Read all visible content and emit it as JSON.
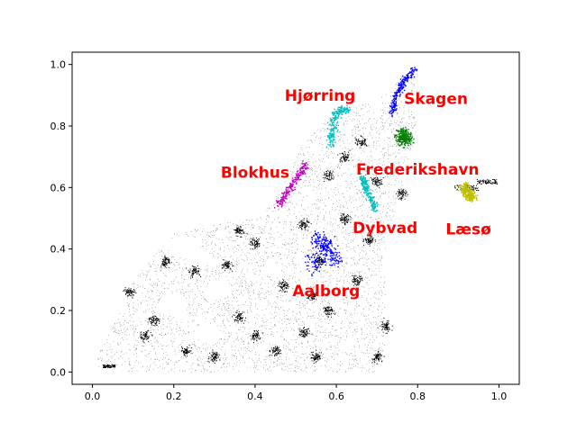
{
  "chart_data": {
    "type": "scatter",
    "title": "",
    "xlabel": "",
    "ylabel": "",
    "xlim": [
      -0.05,
      1.05
    ],
    "ylim": [
      -0.04,
      1.04
    ],
    "xticks": [
      0.0,
      0.2,
      0.4,
      0.6,
      0.8,
      1.0
    ],
    "yticks": [
      0.0,
      0.2,
      0.4,
      0.6,
      0.8,
      1.0
    ],
    "xtick_labels": [
      "0.0",
      "0.2",
      "0.4",
      "0.6",
      "0.8",
      "1.0"
    ],
    "ytick_labels": [
      "0.0",
      "0.2",
      "0.4",
      "0.6",
      "0.8",
      "1.0"
    ],
    "grid": false,
    "background_points": {
      "color": "#000000",
      "outline": [
        [
          0.0,
          0.02
        ],
        [
          0.03,
          0.1
        ],
        [
          0.07,
          0.2
        ],
        [
          0.1,
          0.3
        ],
        [
          0.15,
          0.38
        ],
        [
          0.2,
          0.45
        ],
        [
          0.3,
          0.48
        ],
        [
          0.4,
          0.5
        ],
        [
          0.44,
          0.55
        ],
        [
          0.48,
          0.65
        ],
        [
          0.52,
          0.75
        ],
        [
          0.56,
          0.8
        ],
        [
          0.6,
          0.84
        ],
        [
          0.66,
          0.87
        ],
        [
          0.72,
          0.9
        ],
        [
          0.76,
          0.96
        ],
        [
          0.8,
          0.98
        ],
        [
          0.78,
          0.88
        ],
        [
          0.8,
          0.8
        ],
        [
          0.78,
          0.7
        ],
        [
          0.76,
          0.6
        ],
        [
          0.74,
          0.5
        ],
        [
          0.72,
          0.4
        ],
        [
          0.72,
          0.3
        ],
        [
          0.72,
          0.2
        ],
        [
          0.72,
          0.1
        ],
        [
          0.7,
          0.0
        ],
        [
          0.5,
          0.0
        ],
        [
          0.3,
          0.0
        ],
        [
          0.1,
          0.0
        ]
      ],
      "gaps": [
        [
          0.22,
          0.41,
          0.035
        ],
        [
          0.27,
          0.37,
          0.025
        ],
        [
          0.2,
          0.22,
          0.035
        ],
        [
          0.31,
          0.27,
          0.03
        ],
        [
          0.28,
          0.13,
          0.03
        ],
        [
          0.44,
          0.33,
          0.02
        ],
        [
          0.6,
          0.22,
          0.015
        ],
        [
          0.62,
          0.09,
          0.01
        ]
      ],
      "dense_clusters": [
        [
          0.56,
          0.36
        ],
        [
          0.62,
          0.5
        ],
        [
          0.58,
          0.64
        ],
        [
          0.66,
          0.75
        ],
        [
          0.7,
          0.62
        ],
        [
          0.52,
          0.48
        ],
        [
          0.47,
          0.28
        ],
        [
          0.36,
          0.18
        ],
        [
          0.52,
          0.13
        ],
        [
          0.65,
          0.3
        ],
        [
          0.23,
          0.07
        ],
        [
          0.13,
          0.12
        ],
        [
          0.09,
          0.26
        ],
        [
          0.4,
          0.42
        ],
        [
          0.58,
          0.2
        ],
        [
          0.45,
          0.07
        ],
        [
          0.33,
          0.35
        ],
        [
          0.68,
          0.43
        ],
        [
          0.76,
          0.58
        ],
        [
          0.3,
          0.05
        ],
        [
          0.62,
          0.7
        ],
        [
          0.15,
          0.17
        ],
        [
          0.55,
          0.05
        ],
        [
          0.25,
          0.33
        ],
        [
          0.4,
          0.12
        ],
        [
          0.72,
          0.15
        ],
        [
          0.18,
          0.36
        ],
        [
          0.36,
          0.46
        ],
        [
          0.7,
          0.05
        ],
        [
          0.54,
          0.25
        ]
      ],
      "islands": [
        [
          0.92,
          0.6,
          0.03
        ],
        [
          0.97,
          0.62,
          0.025
        ],
        [
          0.04,
          0.02,
          0.015
        ]
      ]
    },
    "series": [
      {
        "name": "Skagen",
        "color": "#0000ff",
        "shape": "curve",
        "points": [
          [
            0.735,
            0.84
          ],
          [
            0.745,
            0.9
          ],
          [
            0.765,
            0.95
          ],
          [
            0.79,
            0.985
          ]
        ],
        "spread": 0.006
      },
      {
        "name": "Hjørring",
        "color": "#00bfbf",
        "shape": "curve",
        "points": [
          [
            0.585,
            0.74
          ],
          [
            0.59,
            0.8
          ],
          [
            0.6,
            0.85
          ],
          [
            0.63,
            0.855
          ]
        ],
        "spread": 0.008
      },
      {
        "name": "Frederikshavn",
        "color": "#008000",
        "shape": "blob",
        "points": [
          [
            0.765,
            0.765
          ]
        ],
        "spread": 0.014
      },
      {
        "name": "Blokhus",
        "color": "#bf00bf",
        "shape": "curve",
        "points": [
          [
            0.455,
            0.545
          ],
          [
            0.48,
            0.59
          ],
          [
            0.505,
            0.64
          ],
          [
            0.525,
            0.68
          ]
        ],
        "spread": 0.007
      },
      {
        "name": "Dybvad",
        "color": "#00bfbf",
        "shape": "curve",
        "points": [
          [
            0.66,
            0.64
          ],
          [
            0.675,
            0.59
          ],
          [
            0.695,
            0.53
          ]
        ],
        "spread": 0.006
      },
      {
        "name": "Aalborg",
        "color": "#0000ff",
        "shape": "blob",
        "points": [
          [
            0.575,
            0.395
          ],
          [
            0.545,
            0.355
          ],
          [
            0.57,
            0.42
          ],
          [
            0.595,
            0.37
          ],
          [
            0.555,
            0.43
          ]
        ],
        "spread": 0.016
      },
      {
        "name": "Læsø",
        "color": "#bfbf00",
        "shape": "blob",
        "points": [
          [
            0.915,
            0.595
          ],
          [
            0.93,
            0.575
          ]
        ],
        "spread": 0.01
      }
    ],
    "annotations": [
      {
        "text": "Hjørring",
        "x": 0.56,
        "y": 0.9,
        "color": "#ff0000"
      },
      {
        "text": "Skagen",
        "x": 0.845,
        "y": 0.89,
        "color": "#ff0000"
      },
      {
        "text": "Blokhus",
        "x": 0.4,
        "y": 0.65,
        "color": "#ff0000"
      },
      {
        "text": "Frederikshavn",
        "x": 0.8,
        "y": 0.66,
        "color": "#ff0000"
      },
      {
        "text": "Dybvad",
        "x": 0.72,
        "y": 0.47,
        "color": "#ff0000"
      },
      {
        "text": "Læsø",
        "x": 0.925,
        "y": 0.465,
        "color": "#ff0000"
      },
      {
        "text": "Aalborg",
        "x": 0.575,
        "y": 0.265,
        "color": "#ff0000"
      }
    ]
  }
}
